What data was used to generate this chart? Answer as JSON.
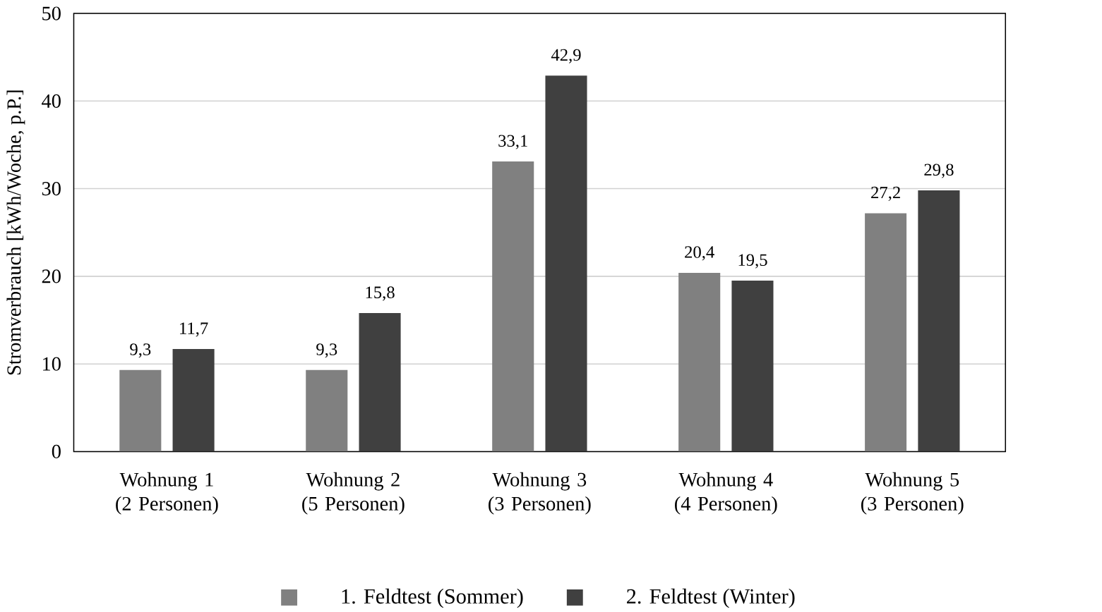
{
  "chart_data": {
    "type": "bar",
    "ylabel": "Stromverbrauch [kWh/Woche, p.P.]",
    "categories": [
      "Wohnung 1 (2 Personen)",
      "Wohnung 2 (5 Personen)",
      "Wohnung 3 (3 Personen)",
      "Wohnung 4 (4 Personen)",
      "Wohnung 5 (3 Personen)"
    ],
    "series": [
      {
        "name": "1. Feldtest (Sommer)",
        "color": "#808080",
        "values": [
          9.3,
          9.3,
          33.1,
          20.4,
          27.2
        ],
        "value_labels": [
          "9,3",
          "9,3",
          "33,1",
          "20,4",
          "27,2"
        ]
      },
      {
        "name": "2. Feldtest (Winter)",
        "color": "#404040",
        "values": [
          11.7,
          15.8,
          42.9,
          19.5,
          29.8
        ],
        "value_labels": [
          "11,7",
          "15,8",
          "42,9",
          "19,5",
          "29,8"
        ]
      }
    ],
    "ylim": [
      0,
      50
    ],
    "yticks": [
      0,
      10,
      20,
      30,
      40,
      50
    ],
    "grid": "y",
    "legend": "bottom"
  }
}
